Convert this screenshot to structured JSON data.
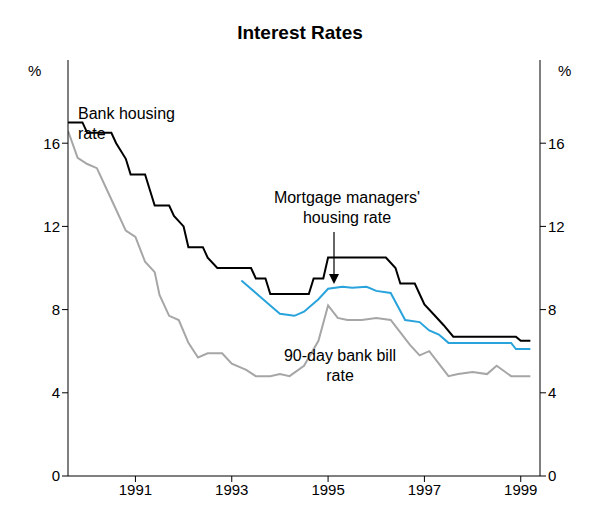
{
  "chart_data": {
    "type": "line",
    "title": "Interest Rates",
    "ylabel": "%",
    "xlim": [
      1989.6,
      1999.4
    ],
    "xticks": [
      1991,
      1993,
      1995,
      1997,
      1999
    ],
    "ylim": [
      0,
      20
    ],
    "yticks": [
      0,
      4,
      8,
      12,
      16
    ],
    "grid": false,
    "series": [
      {
        "name": "Bank housing rate",
        "color": "#000000",
        "x": [
          1989.6,
          1989.9,
          1990.0,
          1990.5,
          1990.6,
          1990.8,
          1990.9,
          1991.2,
          1991.3,
          1991.4,
          1991.7,
          1991.8,
          1992.0,
          1992.1,
          1992.4,
          1992.5,
          1992.7,
          1993.4,
          1993.5,
          1993.7,
          1993.8,
          1994.6,
          1994.7,
          1994.9,
          1995.0,
          1996.2,
          1996.4,
          1996.5,
          1996.8,
          1996.9,
          1997.0,
          1997.2,
          1997.4,
          1997.6,
          1998.9,
          1999.0,
          1999.2
        ],
        "values": [
          17,
          17,
          16.5,
          16.5,
          16,
          15.25,
          14.5,
          14.5,
          13.75,
          13,
          13,
          12.5,
          12,
          11,
          11,
          10.5,
          10,
          10,
          9.5,
          9.5,
          8.75,
          8.75,
          9.5,
          9.5,
          10.5,
          10.5,
          10,
          9.25,
          9.25,
          8.75,
          8.25,
          7.75,
          7.25,
          6.7,
          6.7,
          6.5,
          6.5
        ]
      },
      {
        "name": "Mortgage managers' housing rate",
        "color": "#29a3dc",
        "x": [
          1993.2,
          1993.5,
          1993.8,
          1994.0,
          1994.3,
          1994.5,
          1994.8,
          1995.0,
          1995.3,
          1995.5,
          1995.8,
          1996.0,
          1996.3,
          1996.6,
          1996.9,
          1997.1,
          1997.3,
          1997.5,
          1998.8,
          1998.9,
          1999.2
        ],
        "values": [
          9.4,
          8.8,
          8.2,
          7.8,
          7.7,
          7.9,
          8.5,
          9.0,
          9.1,
          9.05,
          9.1,
          8.9,
          8.8,
          7.5,
          7.4,
          7.0,
          6.8,
          6.4,
          6.4,
          6.1,
          6.1
        ]
      },
      {
        "name": "90-day bank bill rate",
        "color": "#a6a6a6",
        "x": [
          1989.6,
          1989.8,
          1990.0,
          1990.2,
          1990.4,
          1990.6,
          1990.8,
          1991.0,
          1991.2,
          1991.4,
          1991.5,
          1991.7,
          1991.9,
          1992.1,
          1992.3,
          1992.5,
          1992.8,
          1993.0,
          1993.3,
          1993.5,
          1993.8,
          1994.0,
          1994.2,
          1994.5,
          1994.8,
          1995.0,
          1995.2,
          1995.4,
          1995.7,
          1996.0,
          1996.3,
          1996.5,
          1996.7,
          1996.9,
          1997.1,
          1997.3,
          1997.5,
          1997.7,
          1998.0,
          1998.3,
          1998.5,
          1998.8,
          1999.0,
          1999.2
        ],
        "values": [
          16.6,
          15.3,
          15,
          14.8,
          13.8,
          12.8,
          11.8,
          11.5,
          10.3,
          9.8,
          8.7,
          7.7,
          7.5,
          6.4,
          5.7,
          5.9,
          5.9,
          5.4,
          5.1,
          4.8,
          4.8,
          4.9,
          4.8,
          5.3,
          6.5,
          8.2,
          7.6,
          7.5,
          7.5,
          7.6,
          7.5,
          6.9,
          6.3,
          5.8,
          6.0,
          5.4,
          4.8,
          4.9,
          5.0,
          4.9,
          5.3,
          4.8,
          4.8,
          4.8
        ]
      }
    ]
  }
}
